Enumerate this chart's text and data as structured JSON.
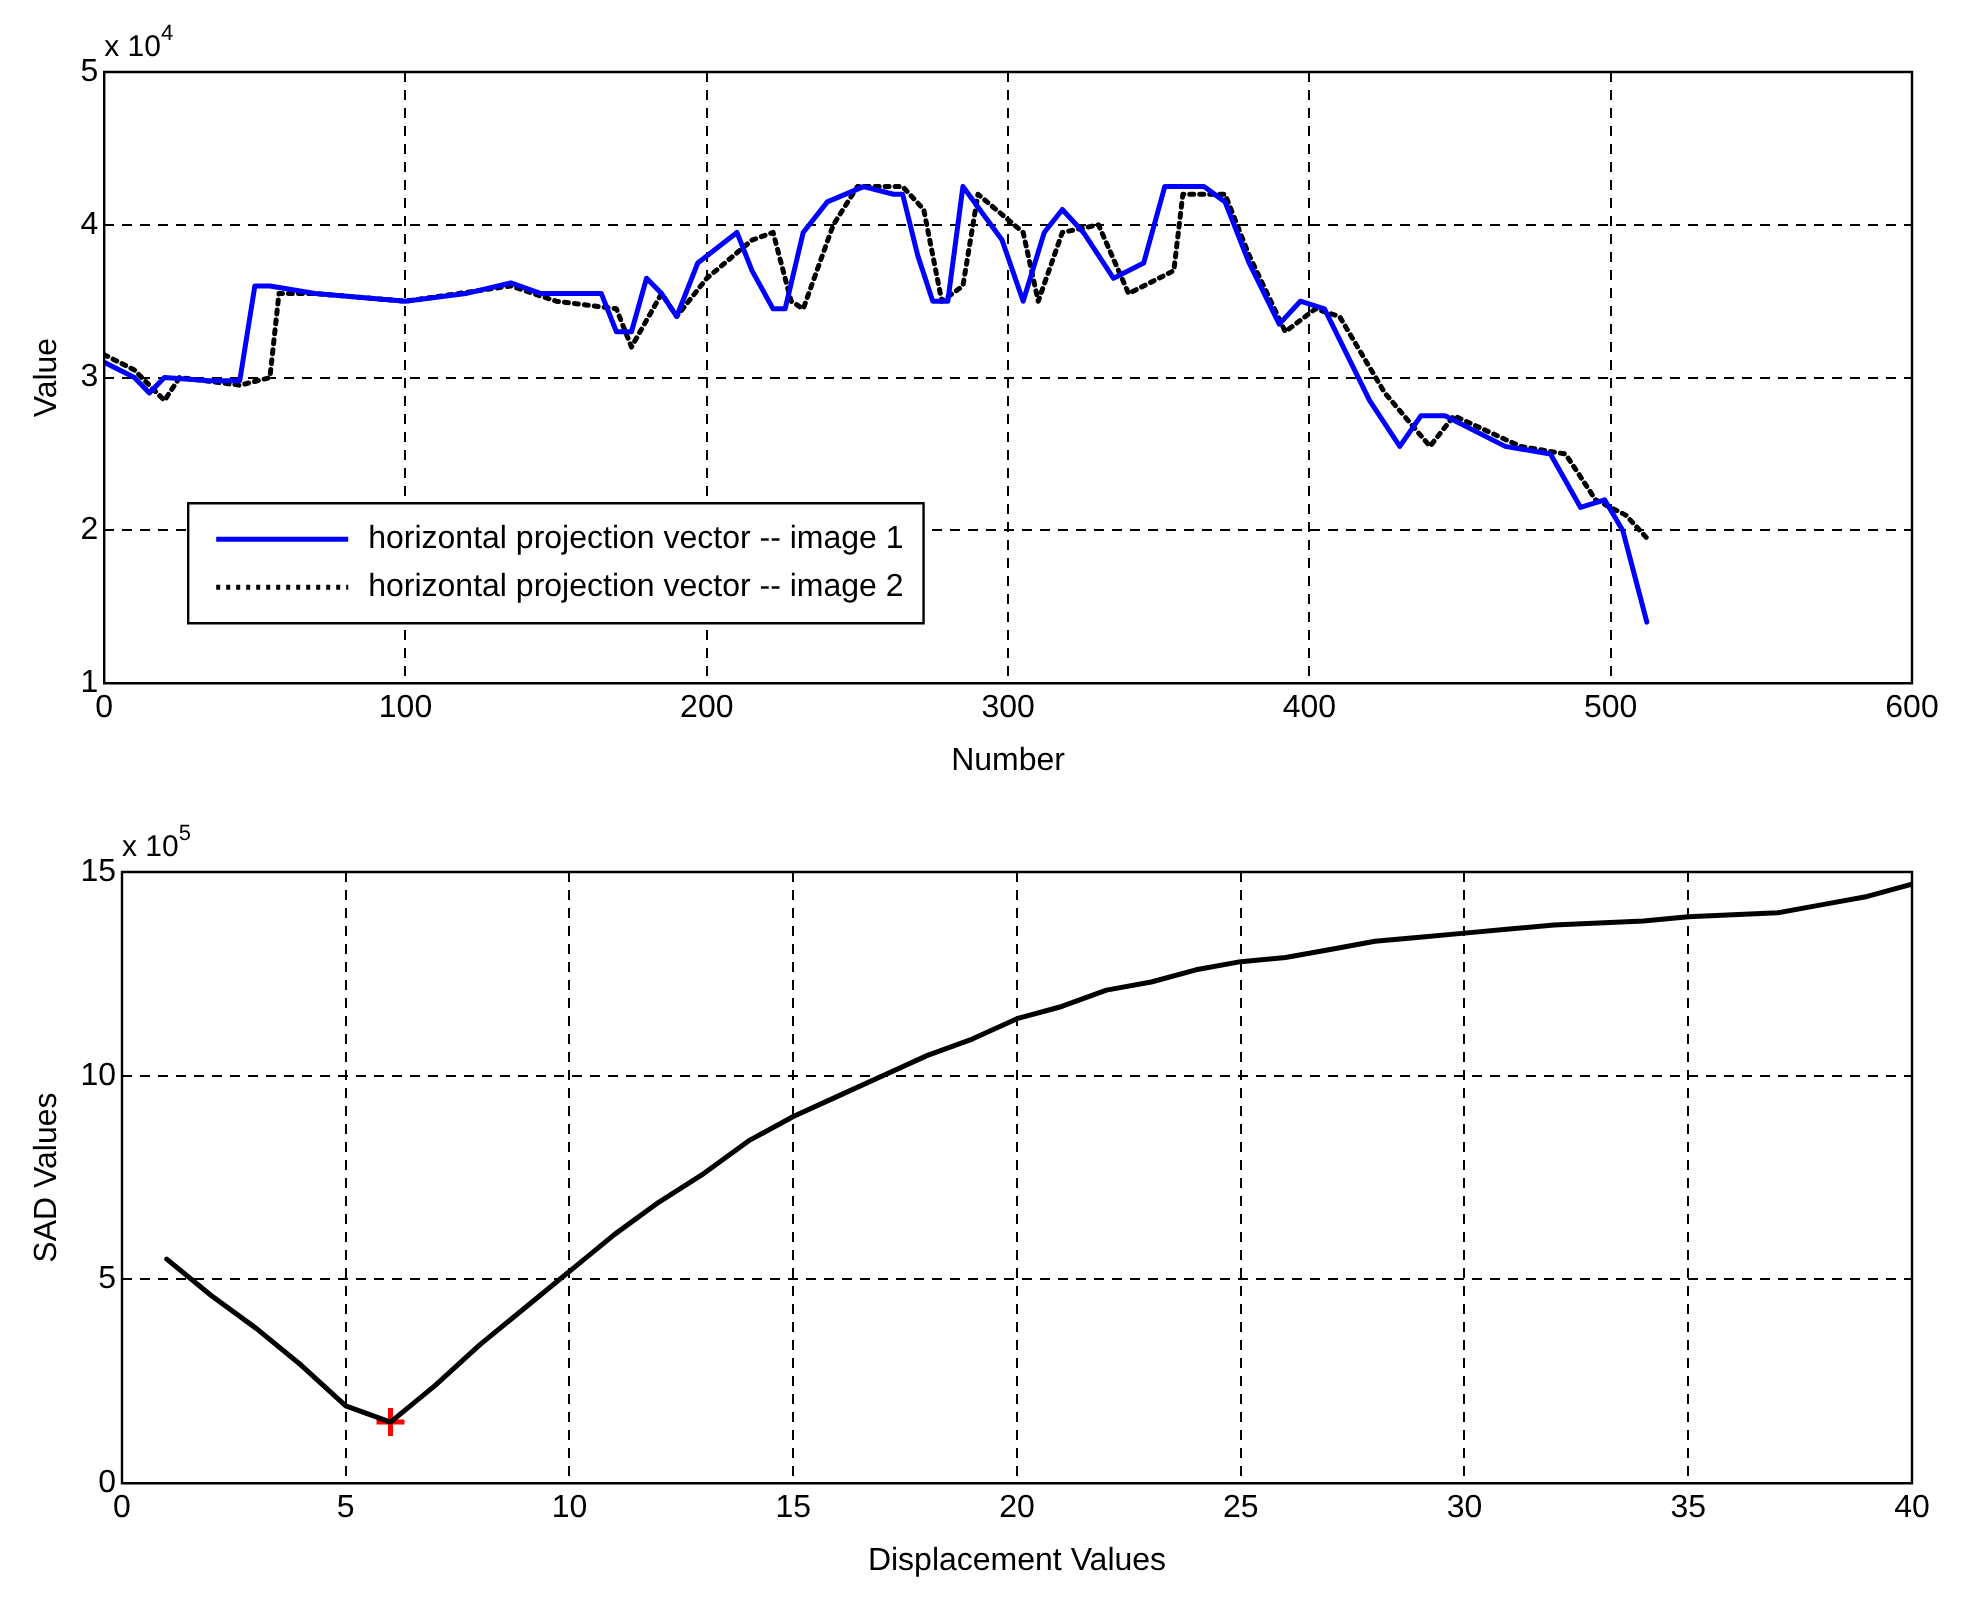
{
  "chart_data": [
    {
      "type": "line",
      "xlabel": "Number",
      "ylabel": "Value",
      "annotations": [
        "x 10$^{4}$"
      ],
      "xlim": [
        0,
        600
      ],
      "xticks": [
        0,
        100,
        200,
        300,
        400,
        500,
        600
      ],
      "ylim": [
        1,
        5
      ],
      "yticks": [
        1,
        2,
        3,
        4,
        5
      ],
      "grid": true,
      "legend": "bottom left",
      "marker": "none",
      "series": [
        {
          "name": "horizontal projection vector -- image 1",
          "color": "#0000ff",
          "line_style": "solid",
          "x": [
            0,
            10,
            15,
            20,
            35,
            45,
            50,
            55,
            70,
            100,
            120,
            135,
            145,
            165,
            170,
            175,
            180,
            185,
            190,
            197,
            210,
            215,
            222,
            226,
            232,
            240,
            252,
            262,
            265,
            270,
            275,
            280,
            285,
            298,
            305,
            312,
            318,
            325,
            335,
            345,
            352,
            365,
            372,
            380,
            390,
            397,
            405,
            420,
            430,
            437,
            445,
            465,
            480,
            490,
            498,
            504,
            508,
            512
          ],
          "values": [
            3.1,
            3.0,
            2.9,
            3.0,
            2.98,
            2.98,
            3.6,
            3.6,
            3.55,
            3.5,
            3.55,
            3.62,
            3.55,
            3.55,
            3.3,
            3.3,
            3.65,
            3.55,
            3.4,
            3.75,
            3.95,
            3.7,
            3.45,
            3.45,
            3.95,
            4.15,
            4.25,
            4.2,
            4.2,
            3.8,
            3.5,
            3.5,
            4.25,
            3.9,
            3.5,
            3.95,
            4.1,
            3.95,
            3.65,
            3.75,
            4.25,
            4.25,
            4.15,
            3.75,
            3.35,
            3.5,
            3.45,
            2.85,
            2.55,
            2.75,
            2.75,
            2.55,
            2.5,
            2.15,
            2.2,
            2.0,
            1.7,
            1.4
          ]
        },
        {
          "name": "horizontal projection vector -- image 2",
          "color": "#000000",
          "line_style": "dotted",
          "x": [
            0,
            10,
            20,
            25,
            45,
            55,
            58,
            70,
            100,
            135,
            150,
            170,
            175,
            185,
            190,
            200,
            215,
            222,
            228,
            232,
            242,
            250,
            265,
            272,
            278,
            285,
            290,
            305,
            310,
            318,
            330,
            340,
            355,
            358,
            372,
            380,
            392,
            402,
            410,
            425,
            440,
            448,
            470,
            485,
            495,
            505,
            512
          ],
          "values": [
            3.15,
            3.05,
            2.85,
            3.0,
            2.95,
            3.0,
            3.55,
            3.55,
            3.5,
            3.6,
            3.5,
            3.45,
            3.2,
            3.55,
            3.4,
            3.65,
            3.9,
            3.95,
            3.5,
            3.45,
            4.0,
            4.25,
            4.25,
            4.1,
            3.5,
            3.6,
            4.2,
            3.95,
            3.5,
            3.95,
            4.0,
            3.55,
            3.7,
            4.2,
            4.2,
            3.8,
            3.3,
            3.45,
            3.4,
            2.9,
            2.55,
            2.75,
            2.55,
            2.5,
            2.2,
            2.1,
            1.95
          ]
        }
      ]
    },
    {
      "type": "line",
      "xlabel": "Displacement Values",
      "ylabel": "SAD Values",
      "annotations": [
        "x 10$^{5}$"
      ],
      "xlim": [
        0,
        40
      ],
      "xticks": [
        0,
        5,
        10,
        15,
        20,
        25,
        30,
        35,
        40
      ],
      "ylim": [
        0,
        15
      ],
      "yticks": [
        0,
        5,
        10,
        15
      ],
      "grid": true,
      "marker": "none",
      "series": [
        {
          "color": "#000000",
          "line_style": "solid",
          "x": [
            1,
            2,
            3,
            4,
            5,
            6,
            7,
            8,
            9,
            10,
            11,
            12,
            13,
            14,
            15,
            16,
            17,
            18,
            19,
            20,
            21,
            22,
            23,
            24,
            25,
            26,
            27,
            28,
            29,
            30,
            31,
            32,
            33,
            34,
            35,
            36,
            37,
            38,
            39,
            40
          ],
          "values": [
            5.5,
            4.6,
            3.8,
            2.9,
            1.9,
            1.5,
            2.4,
            3.4,
            4.3,
            5.2,
            6.1,
            6.9,
            7.6,
            8.4,
            9.0,
            9.5,
            10.0,
            10.5,
            10.9,
            11.4,
            11.7,
            12.1,
            12.3,
            12.6,
            12.8,
            12.9,
            13.1,
            13.3,
            13.4,
            13.5,
            13.6,
            13.7,
            13.75,
            13.8,
            13.9,
            13.95,
            14.0,
            14.2,
            14.4,
            14.7
          ]
        },
        {
          "type": "scatter",
          "color": "#ff0000",
          "marker": "cross",
          "x": [
            6
          ],
          "values": [
            1.5
          ]
        }
      ]
    }
  ]
}
